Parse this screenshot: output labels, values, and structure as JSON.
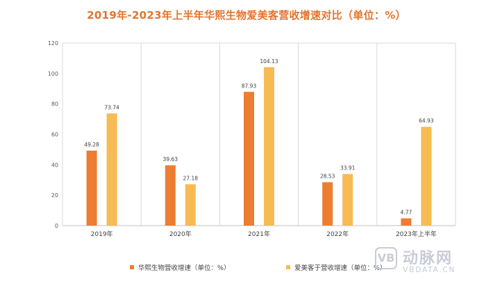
{
  "chart_data": {
    "type": "bar",
    "title": "2019年-2023年上半年华熙生物爱美客营收增速对比（单位：%）",
    "categories": [
      "2019年",
      "2020年",
      "2021年",
      "2022年",
      "2023年上半年"
    ],
    "series": [
      {
        "name": "华熙生物营收增速（单位：%）",
        "values": [
          49.28,
          39.63,
          87.93,
          28.53,
          4.77
        ],
        "color": "#ed7d31"
      },
      {
        "name": "爱美客于营收增速（单位：%）",
        "values": [
          73.74,
          27.18,
          104.13,
          33.91,
          64.93
        ],
        "color": "#f6bb53"
      }
    ],
    "value_labels": [
      [
        "49.28",
        "39.63",
        "87.93",
        "28.53",
        "4.77"
      ],
      [
        "73.74",
        "27.18",
        "104.13",
        "33.91",
        "64.93"
      ]
    ],
    "ylim": [
      0,
      120
    ],
    "yticks": [
      0,
      20,
      40,
      60,
      80,
      100,
      120
    ],
    "xlabel": "",
    "ylabel": "",
    "grid": true,
    "legend_position": "bottom"
  },
  "watermark": {
    "logo": "VB",
    "name": "动脉网",
    "url": "VBDATA.CN"
  }
}
